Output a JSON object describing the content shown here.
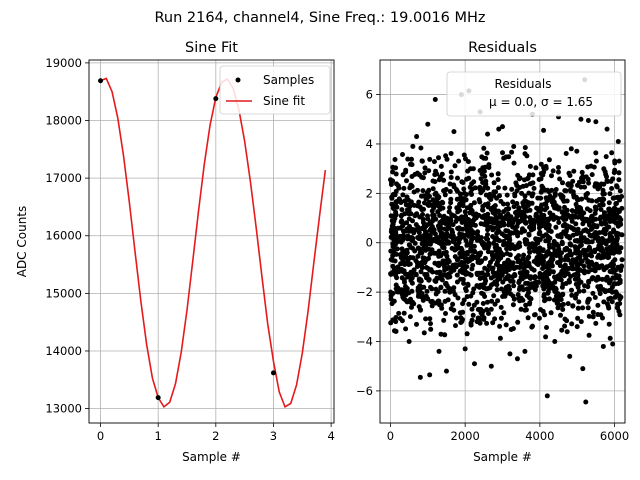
{
  "suptitle": "Run 2164, channel4, Sine Freq.: 19.0016 MHz",
  "chart_data": [
    {
      "type": "line",
      "title": "Sine Fit",
      "xlabel": "Sample #",
      "ylabel": "ADC Counts",
      "xlim": [
        -0.2,
        4.05
      ],
      "ylim": [
        12750,
        19050
      ],
      "xticks": [
        0,
        1,
        2,
        3,
        4
      ],
      "yticks": [
        13000,
        14000,
        15000,
        16000,
        17000,
        18000,
        19000
      ],
      "grid": true,
      "legend": {
        "placement": "top-right",
        "entries": [
          "Samples",
          "Sine fit"
        ]
      },
      "series": [
        {
          "name": "Samples",
          "kind": "scatter",
          "color": "#000000",
          "x": [
            0,
            1,
            2,
            3
          ],
          "y": [
            18690,
            13190,
            18380,
            13620
          ]
        },
        {
          "name": "Sine fit",
          "kind": "line",
          "color": "#e41a1c",
          "x": [
            0.0,
            0.1,
            0.2,
            0.3,
            0.4,
            0.5,
            0.6,
            0.7,
            0.8,
            0.9,
            1.0,
            1.1,
            1.2,
            1.3,
            1.4,
            1.5,
            1.6,
            1.7,
            1.8,
            1.9,
            2.0,
            2.1,
            2.2,
            2.3,
            2.4,
            2.5,
            2.6,
            2.7,
            2.8,
            2.9,
            3.0,
            3.1,
            3.2,
            3.3,
            3.4,
            3.5,
            3.6,
            3.7,
            3.8,
            3.9
          ],
          "y": [
            18690,
            18730,
            18500,
            18040,
            17380,
            16580,
            15710,
            14860,
            14110,
            13530,
            13190,
            13030,
            13110,
            13430,
            13980,
            14710,
            15560,
            16430,
            17240,
            17920,
            18400,
            18660,
            18720,
            18560,
            18190,
            17640,
            16940,
            16140,
            15290,
            14470,
            13820,
            13290,
            13030,
            13090,
            13410,
            13960,
            14690,
            15530,
            16350,
            17140
          ]
        }
      ]
    },
    {
      "type": "scatter",
      "title": "Residuals",
      "xlabel": "Sample #",
      "ylabel": "",
      "xlim": [
        -280,
        6280
      ],
      "ylim": [
        -7.3,
        7.4
      ],
      "xticks": [
        0,
        2000,
        4000,
        6000
      ],
      "yticks": [
        -6,
        -4,
        -2,
        0,
        2,
        4,
        6
      ],
      "grid": true,
      "legend": {
        "placement": "top-right",
        "entries": [
          "Residuals",
          "μ = 0.0, σ = 1.65"
        ]
      },
      "stats": {
        "mean": 0.0,
        "sigma": 1.65,
        "count": 6200
      },
      "series": [
        {
          "name": "Residuals",
          "color": "#000000",
          "x": [
            2100,
            4200,
            5200,
            1900,
            5230,
            2400,
            1200,
            3800,
            4500,
            2700,
            1300,
            5100,
            5500,
            1000,
            3400,
            2900,
            4800,
            1700,
            5700,
            700,
            500,
            2000,
            6100,
            5300,
            3200,
            1500,
            800,
            4100,
            3000,
            600,
            5800,
            5150,
            2250,
            4400,
            2600,
            1050,
            5950,
            3600
          ],
          "y": [
            6.15,
            -6.2,
            6.6,
            6.0,
            -6.45,
            5.3,
            5.8,
            5.2,
            5.1,
            -5.0,
            -4.4,
            5.0,
            4.9,
            4.8,
            -4.7,
            4.6,
            -4.6,
            4.5,
            -4.2,
            4.3,
            -4.0,
            -4.3,
            4.1,
            4.95,
            -4.5,
            -5.2,
            -5.45,
            4.55,
            4.7,
            3.9,
            4.6,
            -5.1,
            -4.9,
            -4.0,
            4.4,
            -5.35,
            -4.1,
            -4.4
          ],
          "bulk": {
            "x_range": [
              0,
              6200
            ],
            "sigma": 1.65
          }
        }
      ]
    }
  ]
}
